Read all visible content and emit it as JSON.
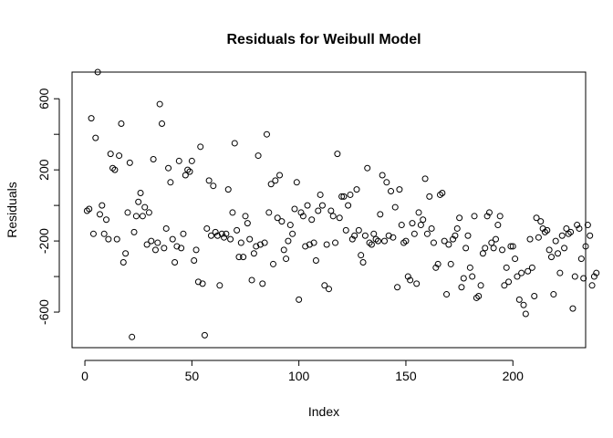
{
  "chart_data": {
    "type": "scatter",
    "title": "Residuals for Weibull Model",
    "xlabel": "Index",
    "ylabel": "Residuals",
    "xlim": [
      1,
      227
    ],
    "ylim": [
      -800,
      750
    ],
    "x_ticks": [
      0,
      50,
      100,
      150,
      200
    ],
    "y_ticks": [
      -600,
      -200,
      200,
      600
    ],
    "y": [
      -30,
      -20,
      490,
      -160,
      380,
      750,
      -50,
      0,
      -160,
      -80,
      -190,
      290,
      210,
      200,
      -190,
      280,
      460,
      -320,
      -270,
      -40,
      240,
      -740,
      -150,
      -60,
      20,
      70,
      -60,
      -10,
      -220,
      -40,
      -200,
      260,
      -250,
      -210,
      570,
      460,
      -240,
      -130,
      210,
      130,
      -190,
      -320,
      -230,
      250,
      -240,
      -160,
      170,
      200,
      190,
      250,
      -310,
      -250,
      -430,
      330,
      -440,
      -730,
      -130,
      140,
      -170,
      110,
      -150,
      -170,
      -450,
      -160,
      -180,
      -160,
      90,
      -190,
      -40,
      350,
      -140,
      -290,
      -210,
      -290,
      -60,
      -100,
      -190,
      -420,
      -270,
      -230,
      280,
      -220,
      -440,
      -210,
      400,
      -40,
      120,
      -330,
      140,
      -70,
      170,
      -90,
      -250,
      -300,
      -200,
      -110,
      -160,
      -20,
      130,
      -530,
      -40,
      -60,
      -230,
      0,
      -220,
      -80,
      -210,
      -310,
      -30,
      60,
      0,
      -450,
      -220,
      -470,
      -30,
      -60,
      -210,
      290,
      -70,
      50,
      50,
      -140,
      0,
      60,
      -190,
      -170,
      90,
      -140,
      -280,
      -320,
      -170,
      210,
      -210,
      -220,
      -160,
      -190,
      -200,
      -50,
      170,
      -200,
      130,
      -170,
      80,
      -180,
      -10,
      -460,
      90,
      -110,
      -210,
      -200,
      -400,
      -420,
      -100,
      -160,
      -440,
      -40,
      -110,
      -80,
      150,
      -160,
      50,
      -130,
      -210,
      -350,
      -330,
      60,
      70,
      -200,
      -500,
      -220,
      -330,
      -190,
      -170,
      -130,
      -70,
      -460,
      -410,
      -240,
      -170,
      -350,
      -400,
      -60,
      -520,
      -510,
      -450,
      -270,
      -240,
      -60,
      -40,
      -210,
      -240,
      -190,
      -110,
      -60,
      -250,
      -450,
      -350,
      -430,
      -230,
      -230,
      -300,
      -400,
      -530,
      -380,
      -560,
      -610,
      -370,
      -190,
      -350,
      -510,
      -70,
      -180,
      -90,
      -130,
      -150,
      -140,
      -250,
      -290,
      -500,
      -200,
      -270,
      -380,
      -170,
      -240,
      -130,
      -160,
      -150,
      -580,
      -400,
      -110,
      -130,
      -300,
      -410,
      -230,
      -110,
      -170,
      -450,
      -400,
      -380
    ],
    "grid": false,
    "legend": "none",
    "marker": "open-circle"
  }
}
